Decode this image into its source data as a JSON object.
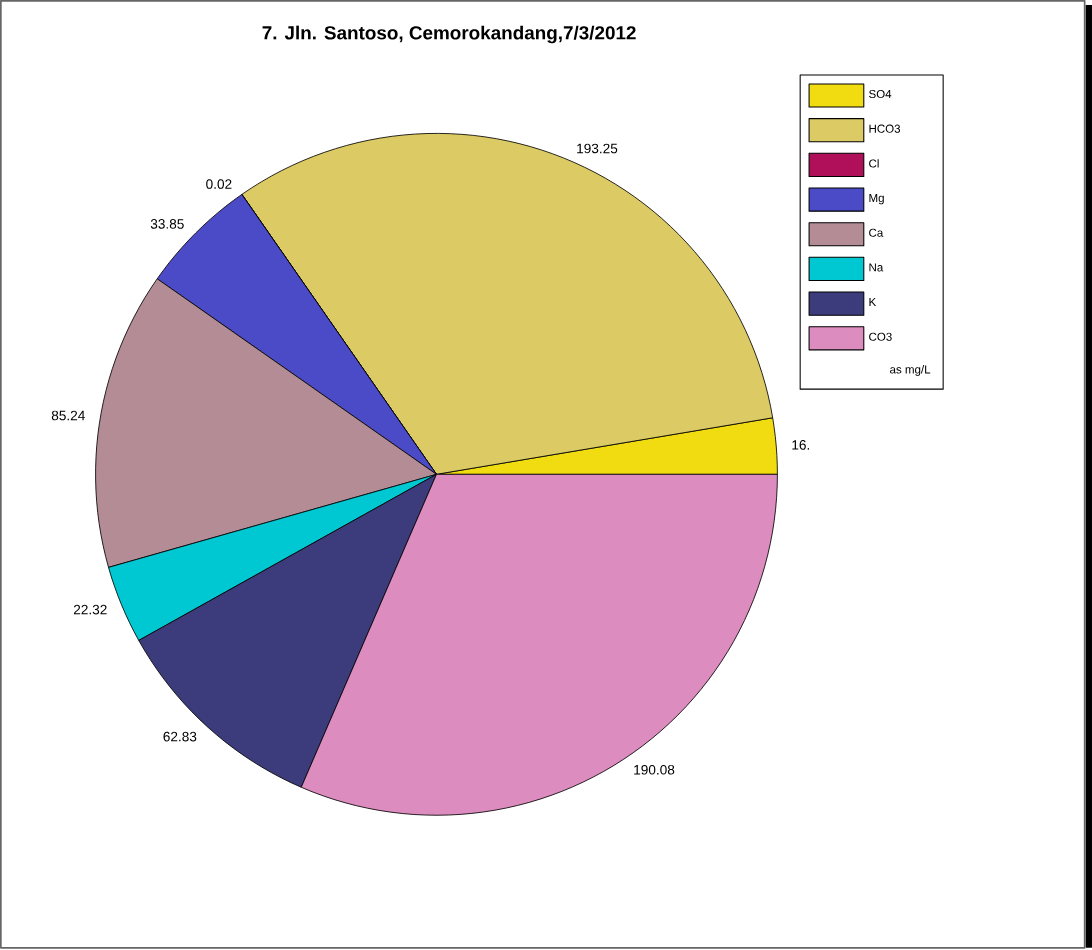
{
  "chart_data": {
    "type": "pie",
    "title": "7. Jln. Santoso, Cemorokandang,7/3/2012",
    "categories": [
      "SO4",
      "HCO3",
      "Cl",
      "Mg",
      "Ca",
      "Na",
      "K",
      "CO3"
    ],
    "values": [
      16,
      193.25,
      0.02,
      33.85,
      85.24,
      22.32,
      62.83,
      190.08
    ],
    "value_labels": [
      "16.",
      "193.25",
      "0.02",
      "33.85",
      "85.24",
      "22.32",
      "62.83",
      "190.08"
    ],
    "colors": [
      "#f0dc10",
      "#dccb64",
      "#b0105a",
      "#4b4bc8",
      "#b48c96",
      "#00c8d2",
      "#3c3c7c",
      "#dc8cbe"
    ],
    "legend": "top right",
    "annotations": [
      "as mg/L"
    ]
  }
}
